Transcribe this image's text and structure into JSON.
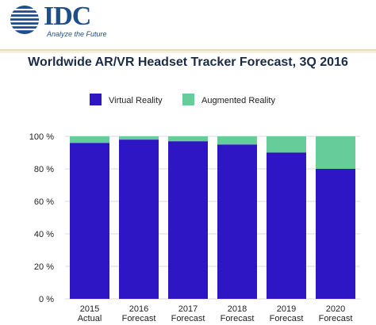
{
  "header": {
    "logo_text": "IDC",
    "tagline": "Analyze the Future"
  },
  "colors": {
    "virtual_reality": "#2e16c4",
    "augmented_reality": "#66cc99",
    "grid": "#d9d9d9",
    "brand": "#1f4e8c"
  },
  "chart_data": {
    "type": "bar",
    "stacked": true,
    "title": "Worldwide AR/VR Headset Tracker Forecast, 3Q 2016",
    "categories": [
      [
        "2015",
        "Actual"
      ],
      [
        "2016",
        "Forecast"
      ],
      [
        "2017",
        "Forecast"
      ],
      [
        "2018",
        "Forecast"
      ],
      [
        "2019",
        "Forecast"
      ],
      [
        "2020",
        "Forecast"
      ]
    ],
    "series": [
      {
        "name": "Virtual Reality",
        "values": [
          96,
          98,
          97,
          95,
          90,
          80
        ]
      },
      {
        "name": "Augmented Reality",
        "values": [
          4,
          2,
          3,
          5,
          10,
          20
        ]
      }
    ],
    "ylim": [
      0,
      100
    ],
    "yticks": [
      "0 %",
      "20 %",
      "40 %",
      "60 %",
      "80 %",
      "100 %"
    ],
    "grid": true,
    "legend_position": "top"
  }
}
